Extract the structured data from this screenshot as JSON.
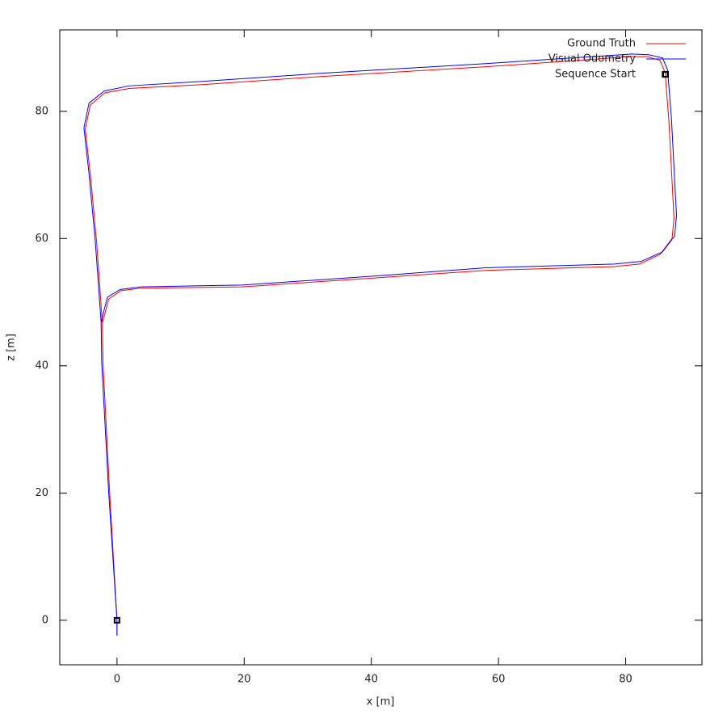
{
  "chart_data": {
    "type": "line",
    "xlabel": "x [m]",
    "ylabel": "z [m]",
    "xlim": [
      -9,
      92
    ],
    "ylim": [
      -7,
      92.8
    ],
    "xticks": [
      0,
      20,
      40,
      60,
      80
    ],
    "yticks": [
      0,
      20,
      40,
      60,
      80
    ],
    "legend": "top-right",
    "series": [
      {
        "name": "Ground Truth",
        "color": "#ff0000",
        "style": "line",
        "x": [
          0,
          -1.15,
          -2.2,
          -2.3,
          -1.3,
          0.6,
          3.8,
          19.7,
          38.9,
          58,
          78.3,
          82.2,
          85.4,
          87.3,
          87.6,
          86.8,
          86.2,
          85.4,
          83.4,
          80.9,
          58,
          32.5,
          13.4,
          1.9,
          -1.9,
          -4.2,
          -5,
          -4.2,
          -3.2,
          -2.3,
          -2.2,
          -1.15,
          0,
          0
        ],
        "values": [
          0,
          20,
          40.4,
          46.7,
          50.5,
          51.8,
          52.2,
          52.4,
          53.7,
          55,
          55.6,
          56,
          57.5,
          60,
          63.2,
          78.5,
          86.1,
          88,
          88.6,
          88.6,
          87,
          85.5,
          84.2,
          83.6,
          82.9,
          81,
          77.2,
          70.2,
          59.4,
          46.7,
          40.4,
          20,
          0,
          -2.4
        ]
      },
      {
        "name": "Visual Odometry",
        "color": "#0000ff",
        "style": "line",
        "x": [
          0,
          -1.3,
          -2.4,
          -2.5,
          -1.5,
          0.5,
          3.8,
          19.7,
          38.9,
          58,
          78.3,
          82.4,
          85.8,
          87.7,
          88,
          87.2,
          86.6,
          85.8,
          83.6,
          80.9,
          58,
          32.5,
          13.4,
          1.9,
          -2.0,
          -4.4,
          -5.2,
          -4.4,
          -3.4,
          -2.5,
          -2.4,
          -1.3,
          0,
          0
        ],
        "values": [
          0,
          20,
          40.4,
          46.9,
          50.8,
          52,
          52.4,
          52.7,
          54,
          55.4,
          56,
          56.4,
          57.9,
          60.4,
          63.6,
          78.9,
          86.5,
          88.4,
          88.9,
          89,
          87.5,
          86,
          84.7,
          84,
          83.2,
          81.3,
          77.4,
          70.2,
          59.4,
          46.9,
          40.4,
          20,
          0,
          -2.4
        ]
      },
      {
        "name": "Sequence Start",
        "color": "#000000",
        "style": "points",
        "marker": "square",
        "x": [
          0,
          86.2
        ],
        "values": [
          0,
          85.8
        ]
      }
    ]
  }
}
